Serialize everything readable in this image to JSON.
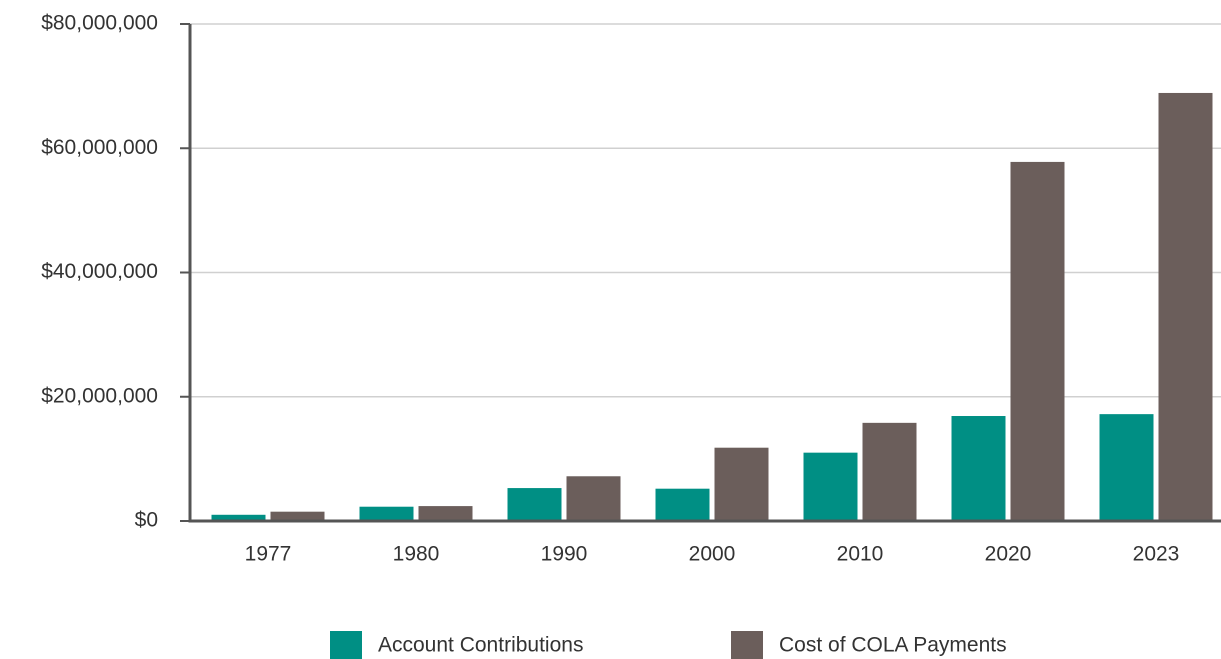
{
  "chart_data": {
    "type": "bar",
    "categories": [
      "1977",
      "1980",
      "1990",
      "2000",
      "2010",
      "2020",
      "2023"
    ],
    "series": [
      {
        "name": "Account Contributions",
        "color": "#008f84",
        "values": [
          1000000,
          2300000,
          5300000,
          5200000,
          11000000,
          16900000,
          17200000
        ]
      },
      {
        "name": "Cost of COLA Payments",
        "color": "#6b5e5b",
        "values": [
          1500000,
          2400000,
          7200000,
          11800000,
          15800000,
          57800000,
          68900000
        ]
      }
    ],
    "ylim": [
      0,
      80000000
    ],
    "yticks": [
      {
        "value": 0,
        "label": "$0"
      },
      {
        "value": 20000000,
        "label": "$20,000,000"
      },
      {
        "value": 40000000,
        "label": "$40,000,000"
      },
      {
        "value": 60000000,
        "label": "$60,000,000"
      },
      {
        "value": 80000000,
        "label": "$80,000,000"
      }
    ],
    "grid": true,
    "legend": "bottom"
  }
}
